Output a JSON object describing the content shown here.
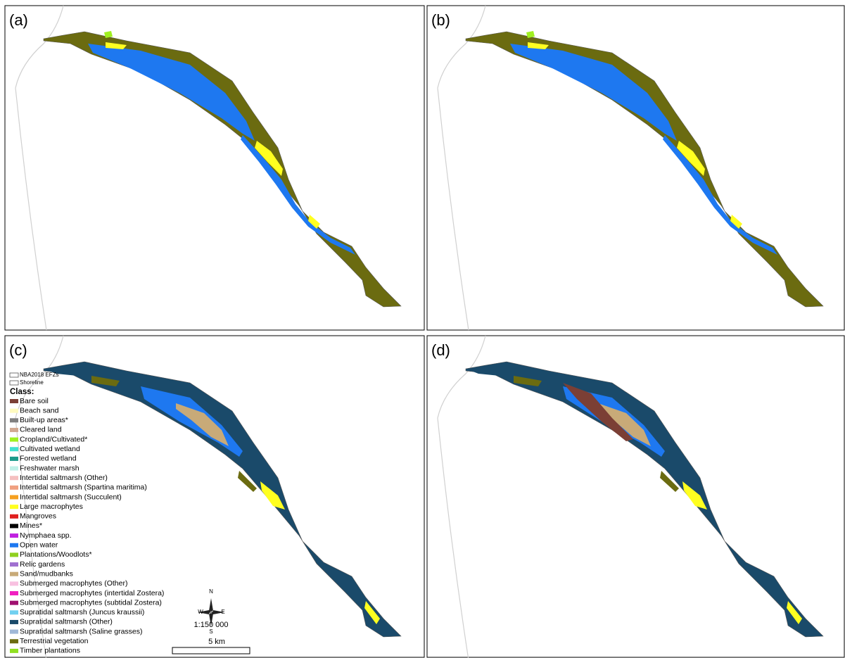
{
  "panels": [
    {
      "label": "(a)"
    },
    {
      "label": "(b)"
    },
    {
      "label": "(c)"
    },
    {
      "label": "(d)"
    }
  ],
  "legend": {
    "layers": [
      "NBA2018 EFZs",
      "Shoreline"
    ],
    "title": "Class:",
    "items": [
      {
        "label": "Bare soil",
        "color": "#7b3f35"
      },
      {
        "label": "Beach sand",
        "color": "#fffbc0"
      },
      {
        "label": "Built-up areas*",
        "color": "#808080"
      },
      {
        "label": "Cleared land",
        "color": "#d2a890"
      },
      {
        "label": "Cropland/Cultivated*",
        "color": "#a0f020"
      },
      {
        "label": "Cultivated wetland",
        "color": "#40e0d0"
      },
      {
        "label": "Forested wetland",
        "color": "#1a9a8a"
      },
      {
        "label": "Freshwater marsh",
        "color": "#c0f0e8"
      },
      {
        "label": "Intertidal saltmarsh (Other)",
        "color": "#f5c0c0"
      },
      {
        "label": "Intertidal saltmarsh (Spartina maritima)",
        "color": "#f0a080"
      },
      {
        "label": "Intertidal saltmarsh (Succulent)",
        "color": "#f5a020"
      },
      {
        "label": "Large macrophytes",
        "color": "#ffff20"
      },
      {
        "label": "Mangroves",
        "color": "#e02020"
      },
      {
        "label": "Mines*",
        "color": "#000000"
      },
      {
        "label": "Nymphaea spp.",
        "color": "#c020e0"
      },
      {
        "label": "Open water",
        "color": "#1e78f0"
      },
      {
        "label": "Plantations/Woodlots*",
        "color": "#90d020"
      },
      {
        "label": "Relic gardens",
        "color": "#a070d0"
      },
      {
        "label": "Sand/mudbanks",
        "color": "#c8aa78"
      },
      {
        "label": "Submerged macrophytes (Other)",
        "color": "#f8c0e0"
      },
      {
        "label": "Submerged macrophytes (intertidal Zostera)",
        "color": "#f020c0"
      },
      {
        "label": "Submerged macrophytes (subtidal Zostera)",
        "color": "#a01070"
      },
      {
        "label": "Supratidal saltmarsh (Juncus kraussii)",
        "color": "#70d0f0"
      },
      {
        "label": "Supratidal saltmarsh (Other)",
        "color": "#1a4a6a"
      },
      {
        "label": "Supratidal saltmarsh (Saline grasses)",
        "color": "#a0b8d8"
      },
      {
        "label": "Terrestrial vegetation",
        "color": "#6b6b10"
      },
      {
        "label": "Timber plantations",
        "color": "#90e020"
      }
    ]
  },
  "compass": {
    "n": "N",
    "w": "W",
    "e": "E",
    "s": "S"
  },
  "scale": {
    "ratio": "1:150 000",
    "distance": "5 km"
  }
}
